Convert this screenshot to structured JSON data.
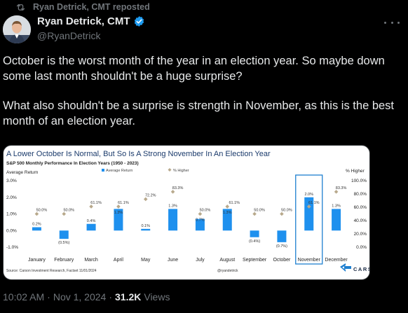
{
  "repost": {
    "label": "Ryan Detrick, CMT reposted"
  },
  "author": {
    "name": "Ryan Detrick, CMT",
    "handle": "@RyanDetrick"
  },
  "tweet": {
    "paragraph1": "October is the worst month of the year in an election year. So maybe down some last month shouldn't be a huge surprise?",
    "paragraph2": "What also shouldn't be a surprise is strength in November, as this is the best month of an election year."
  },
  "meta": {
    "time": "10:02 AM",
    "date": "Nov 1, 2024",
    "separator": "·",
    "views_count": "31.2K",
    "views_label": "Views"
  },
  "colors": {
    "bar": "#1e90ee",
    "dot": "#b8a98c",
    "title": "#1a3a6b",
    "highlight": "#1e7fd0"
  },
  "icons": {
    "repost": "repost-icon",
    "verified": "verified-badge-icon",
    "more": "more-icon"
  },
  "chart_data": {
    "type": "bar",
    "title": "A Lower October Is Normal, But So Is A Strong November In An Election Year",
    "subtitle": "S&P 500 Monthly Performance In Election Years (1950 - 2023)",
    "ylabel_left": "Average Return",
    "ylabel_right": "% Higher",
    "legend": [
      "Average Return",
      "% Higher"
    ],
    "categories": [
      "January",
      "February",
      "March",
      "April",
      "May",
      "June",
      "July",
      "August",
      "September",
      "October",
      "November",
      "December"
    ],
    "series": [
      {
        "name": "Average Return",
        "values": [
          0.2,
          -0.5,
          0.4,
          1.3,
          0.1,
          1.3,
          0.7,
          1.3,
          -0.4,
          -0.7,
          2.0,
          1.3
        ],
        "labels": [
          "0.2%",
          "(0.5%)",
          "0.4%",
          "1.3%",
          "0.1%",
          "1.3%",
          "0.7%",
          "1.3%",
          "(0.4%)",
          "(0.7%)",
          "2.0%",
          "1.3%"
        ]
      },
      {
        "name": "% Higher",
        "values": [
          50.0,
          50.0,
          61.1,
          61.1,
          72.2,
          83.3,
          50.0,
          61.1,
          50.0,
          50.0,
          61.1,
          83.3
        ],
        "labels": [
          "50.0%",
          "50.0%",
          "61.1%",
          "61.1%",
          "72.2%",
          "83.3%",
          "50.0%",
          "61.1%",
          "50.0%",
          "50.0%",
          "61.1%",
          "83.3%"
        ]
      }
    ],
    "yticks_left": [
      "3.0%",
      "2.0%",
      "1.0%",
      "0.0%",
      "-1.0%"
    ],
    "yticks_right": [
      "100.0%",
      "80.0%",
      "60.0%",
      "40.0%",
      "20.0%",
      "0.0%"
    ],
    "ylim_left": [
      -1,
      3
    ],
    "ylim_right": [
      0,
      100
    ],
    "highlight": "November",
    "source": "Source: Carson Investment Research, Factset 11/01/2024",
    "credit": "@ryandetrick",
    "logo_text": "CARSON",
    "legend_position": "top"
  }
}
